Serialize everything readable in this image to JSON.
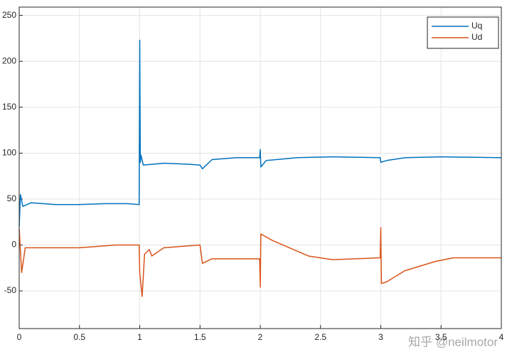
{
  "chart_data": {
    "type": "line",
    "xlim": [
      0,
      4
    ],
    "xticks": [
      0,
      0.5,
      1,
      1.5,
      2,
      2.5,
      3,
      3.5,
      4
    ],
    "ylim": [
      -91,
      259
    ],
    "yticks": [
      -50,
      0,
      50,
      100,
      150,
      200,
      250
    ],
    "grid": true,
    "legend": "top-right",
    "watermark": "知乎 @neilmotor",
    "series": [
      {
        "name": "Uq",
        "color": "#0072BD",
        "x": [
          0,
          0.01,
          0.03,
          0.1,
          0.3,
          0.5,
          0.7,
          0.9,
          0.995,
          1.0,
          1.005,
          1.01,
          1.03,
          1.2,
          1.4,
          1.5,
          1.52,
          1.6,
          1.8,
          1.995,
          2.0,
          2.005,
          2.05,
          2.3,
          2.6,
          2.995,
          3.0,
          3.05,
          3.2,
          3.5,
          4
        ],
        "values": [
          20,
          55,
          42,
          46,
          44,
          44,
          45,
          45,
          44,
          223,
          90,
          98,
          87,
          89,
          88,
          87,
          83,
          93,
          95,
          95,
          104,
          85,
          92,
          95,
          96,
          95,
          90,
          92,
          95,
          96,
          95
        ]
      },
      {
        "name": "Ud",
        "color": "#D95319",
        "x": [
          0,
          0.02,
          0.05,
          0.3,
          0.5,
          0.8,
          0.995,
          1.0,
          1.02,
          1.04,
          1.08,
          1.1,
          1.2,
          1.5,
          1.52,
          1.6,
          1.995,
          2.0,
          2.005,
          2.1,
          2.4,
          2.6,
          2.995,
          3.0,
          3.005,
          3.05,
          3.2,
          3.45,
          3.6,
          4
        ],
        "values": [
          18,
          -30,
          -3,
          -3,
          -3,
          0,
          0,
          -30,
          -56,
          -10,
          -5,
          -12,
          -3,
          0,
          -20,
          -15,
          -15,
          -46,
          12,
          5,
          -12,
          -16,
          -14,
          19,
          -42,
          -40,
          -28,
          -18,
          -14,
          -14
        ]
      }
    ]
  }
}
